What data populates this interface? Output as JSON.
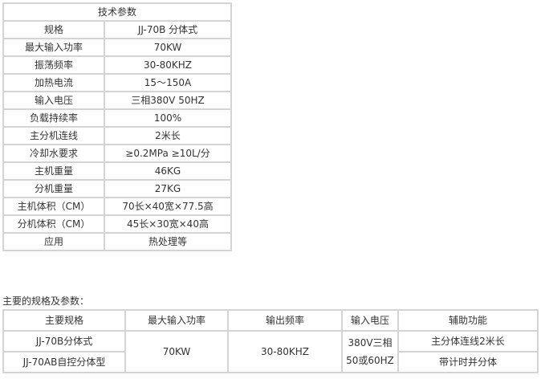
{
  "spec_table": {
    "title": "技术参数",
    "rows": [
      [
        "规格",
        "JJ-70B 分体式"
      ],
      [
        "最大输入功率",
        "70KW"
      ],
      [
        "振荡频率",
        "30-80KHZ"
      ],
      [
        "加热电流",
        "15～150A"
      ],
      [
        "输入电压",
        "三相380V 50HZ"
      ],
      [
        "负载持续率",
        "100%"
      ],
      [
        "主分机连线",
        "2米长"
      ],
      [
        "冷却水要求",
        "≥0.2MPa ≥10L/分"
      ],
      [
        "主机重量",
        "46KG"
      ],
      [
        "分机重量",
        "27KG"
      ],
      [
        "主机体积（CM）",
        "70长×40宽×77.5高"
      ],
      [
        "分机体积（CM）",
        "45长×30宽×40高"
      ],
      [
        "应用",
        "热处理等"
      ]
    ]
  },
  "caption": "主要的规格及参数：",
  "main_table": {
    "headers": [
      "主要规格",
      "最大输入功率",
      "输出频率",
      "输入电压",
      "辅助功能"
    ],
    "models": [
      "JJ-70B分体式",
      "JJ-70AB自控分体型"
    ],
    "power": "70KW",
    "frequency": "30-80KHZ",
    "voltage_line1": "380V三相",
    "voltage_line2": "50或60HZ",
    "functions": [
      "主分体连线2米长",
      "带计时并分体"
    ]
  }
}
